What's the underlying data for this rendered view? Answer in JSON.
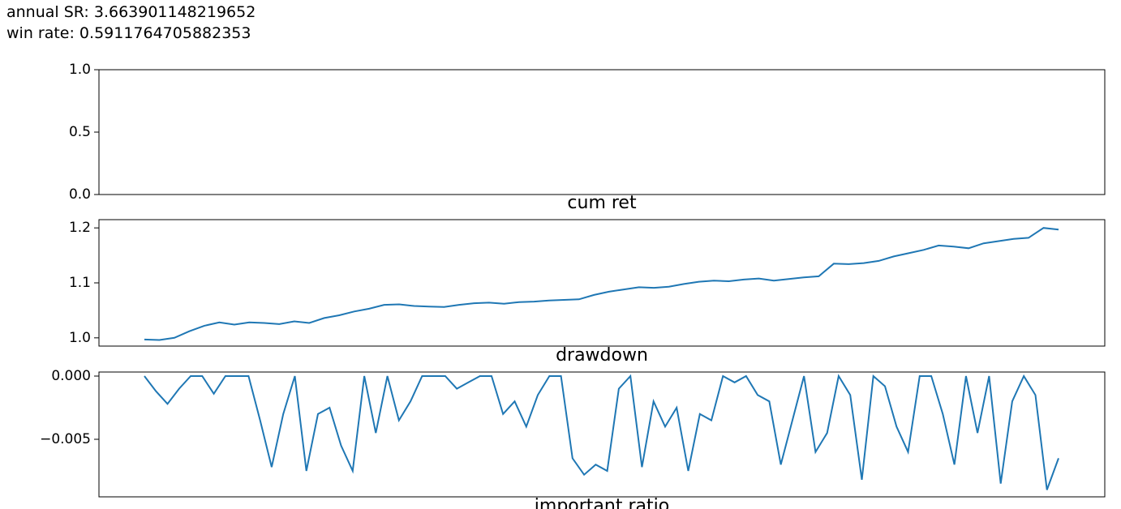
{
  "output_lines": [
    "annual SR: 3.663901148219652",
    "win rate: 0.5911764705882353"
  ],
  "chart_data": [
    {
      "type": "line",
      "ylim": [
        0,
        1
      ],
      "yticks": [
        {
          "value": 0,
          "label": "0.0"
        },
        0.5,
        {
          "value": 1,
          "label": "1.0"
        }
      ]
    },
    {
      "type": "line",
      "title": "cum ret",
      "ylim": [
        0.985,
        1.215
      ],
      "yticks": [
        {
          "value": 1,
          "label": "1.0"
        },
        1.1,
        1.2
      ],
      "color": "#1f77b4",
      "values": [
        0.997,
        0.996,
        1.0,
        1.012,
        1.022,
        1.028,
        1.024,
        1.028,
        1.027,
        1.025,
        1.03,
        1.027,
        1.036,
        1.041,
        1.048,
        1.053,
        1.06,
        1.061,
        1.058,
        1.057,
        1.056,
        1.06,
        1.063,
        1.064,
        1.062,
        1.065,
        1.066,
        1.068,
        1.069,
        1.07,
        1.078,
        1.084,
        1.088,
        1.092,
        1.091,
        1.093,
        1.098,
        1.102,
        1.104,
        1.103,
        1.106,
        1.108,
        1.104,
        1.107,
        1.11,
        1.112,
        1.135,
        1.134,
        1.136,
        1.14,
        1.148,
        1.154,
        1.16,
        1.168,
        1.166,
        1.163,
        1.172,
        1.176,
        1.18,
        1.182,
        1.2,
        1.197
      ]
    },
    {
      "type": "line",
      "title": "drawdown",
      "ylim": [
        -0.00955,
        0.00032
      ],
      "yticks": [
        {
          "value": -0.005,
          "label": "−0.005"
        },
        {
          "value": 0,
          "label": "0.000"
        }
      ],
      "color": "#1f77b4",
      "values": [
        0,
        -0.0012,
        -0.0022,
        -0.001,
        0,
        0,
        -0.0014,
        0,
        0,
        0,
        -0.0035,
        -0.0072,
        -0.003,
        0,
        -0.0075,
        -0.003,
        -0.0025,
        -0.0055,
        -0.0075,
        0,
        -0.0045,
        0,
        -0.0035,
        -0.002,
        0,
        0,
        0,
        -0.001,
        -0.0005,
        0,
        0,
        -0.003,
        -0.002,
        -0.004,
        -0.0015,
        0,
        0,
        -0.0065,
        -0.0078,
        -0.007,
        -0.0075,
        -0.001,
        0,
        -0.0072,
        -0.002,
        -0.004,
        -0.0025,
        -0.0075,
        -0.003,
        -0.0035,
        0,
        -0.0005,
        0,
        -0.0015,
        -0.002,
        -0.007,
        -0.0035,
        0,
        -0.006,
        -0.0045,
        0,
        -0.0015,
        -0.0082,
        0,
        -0.0008,
        -0.004,
        -0.006,
        0,
        0,
        -0.003,
        -0.007,
        0,
        -0.0045,
        0,
        -0.0085,
        -0.002,
        0,
        -0.0015,
        -0.009,
        -0.0065
      ]
    },
    {
      "type": "line",
      "title": "important ratio"
    }
  ]
}
